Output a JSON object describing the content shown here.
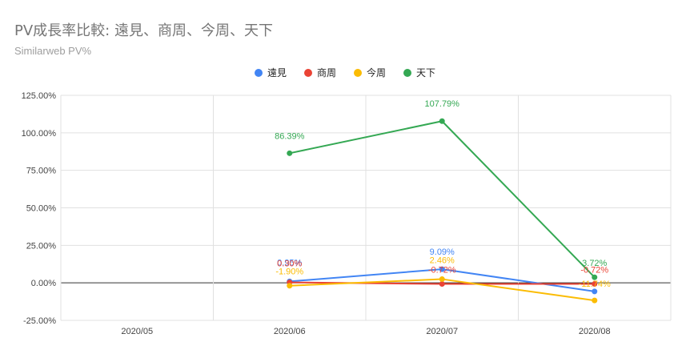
{
  "chart_data": {
    "type": "line",
    "title": "PV成長率比較: 遠見、商周、今周、天下",
    "subtitle": "Similarweb PV%",
    "categories": [
      "2020/05",
      "2020/06",
      "2020/07",
      "2020/08"
    ],
    "ylim": [
      -25,
      125
    ],
    "yticks": [
      -25,
      0,
      25,
      50,
      75,
      100,
      125
    ],
    "ytick_labels": [
      "-25.00%",
      "0.00%",
      "25.00%",
      "50.00%",
      "75.00%",
      "100.00%",
      "125.00%"
    ],
    "legend_position": "top",
    "series": [
      {
        "name": "遠見",
        "color": "#4285f4",
        "values": [
          null,
          0.95,
          9.09,
          -5.7
        ],
        "labels": [
          null,
          "0.95%",
          "9.09%",
          ""
        ]
      },
      {
        "name": "商周",
        "color": "#ea4335",
        "values": [
          null,
          0.3,
          -0.72,
          -0.72
        ],
        "labels": [
          null,
          "0.30%",
          "-0.72%",
          "-0.72%"
        ]
      },
      {
        "name": "今周",
        "color": "#fbbc04",
        "values": [
          null,
          -1.9,
          2.46,
          -11.74
        ],
        "labels": [
          null,
          "-1.90%",
          "2.46%",
          "-11.74%"
        ]
      },
      {
        "name": "天下",
        "color": "#34a853",
        "values": [
          null,
          86.39,
          107.79,
          3.72
        ],
        "labels": [
          null,
          "86.39%",
          "107.79%",
          "3.72%"
        ]
      }
    ]
  }
}
